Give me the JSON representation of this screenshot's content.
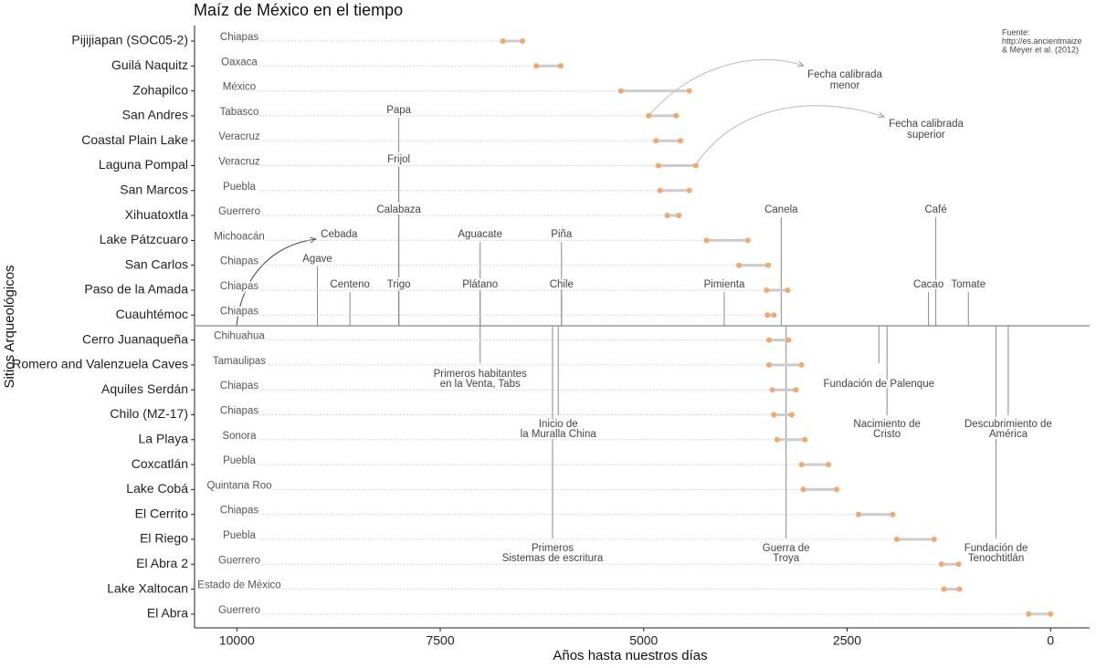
{
  "chart_data": {
    "type": "dumbbell",
    "title": "Maíz de México en el tiempo",
    "xlabel": "Años hasta nuestros días",
    "ylabel": "Sitios Arqueológicos",
    "xlim": [
      10520,
      -480
    ],
    "xticks": [
      10000,
      7500,
      5000,
      2500,
      0
    ],
    "categories": [
      "Pijijiapan (SOC05-2)",
      "Guilá Naquitz",
      "Zohapilco",
      "San Andres",
      "Coastal Plain Lake",
      "Laguna Pompal",
      "San Marcos",
      "Xihuatoxtla",
      "Lake Pátzcuaro",
      "San Carlos",
      "Paso de la Amada",
      "Cuauhtémoc",
      "Cerro Juanaqueña",
      "Romero and Valenzuela Caves",
      "Aquiles Serdán",
      "Chilo (MZ-17)",
      "La Playa",
      "Coxcatlán",
      "Lake Cobá",
      "El Cerrito",
      "El Riego",
      "El Abra 2",
      "Lake Xaltocan",
      "El Abra"
    ],
    "regions": [
      "Chiapas",
      "Oaxaca",
      "México",
      "Tabasco",
      "Veracruz",
      "Veracruz",
      "Puebla",
      "Guerrero",
      "Michoacán",
      "Chiapas",
      "Chiapas",
      "Chiapas",
      "Chihuahua",
      "Tamaulipas",
      "Chiapas",
      "Chiapas",
      "Sonora",
      "Puebla",
      "Quintana Roo",
      "Chiapas",
      "Puebla",
      "Guerrero",
      "Estado de México",
      "Guerrero"
    ],
    "series": [
      {
        "color": "#f4a76e",
        "values": [
          6730,
          6320,
          5280,
          4940,
          4850,
          4820,
          4800,
          4710,
          4230,
          3830,
          3490,
          3480,
          3460,
          3460,
          3420,
          3400,
          3360,
          3060,
          3040,
          2360,
          1890,
          1340,
          1310,
          270
        ]
      },
      {
        "color": "#f4a76e",
        "values": [
          6490,
          6020,
          4440,
          4600,
          4550,
          4360,
          4440,
          4570,
          3720,
          3470,
          3230,
          3400,
          3220,
          3060,
          3130,
          3180,
          3020,
          2730,
          2630,
          1940,
          1430,
          1130,
          1120,
          0
        ]
      }
    ],
    "range_color": "#cccccc",
    "events": [
      {
        "label": [
          "Cebada"
        ],
        "year": 10000
      },
      {
        "label": [
          "Agave"
        ],
        "year": 9010
      },
      {
        "label": [
          "Centeno"
        ],
        "year": 8610
      },
      {
        "label": [
          "Trigo"
        ],
        "year": 8010
      },
      {
        "label": [
          "Calabaza"
        ],
        "year": 8010
      },
      {
        "label": [
          "Frijol"
        ],
        "year": 8010
      },
      {
        "label": [
          "Papa"
        ],
        "year": 8010
      },
      {
        "label": [
          "Plátano"
        ],
        "year": 7010
      },
      {
        "label": [
          "Aguacate"
        ],
        "year": 7010
      },
      {
        "label": [
          "Chile"
        ],
        "year": 6010
      },
      {
        "label": [
          "Piña"
        ],
        "year": 6010
      },
      {
        "label": [
          "Pimienta"
        ],
        "year": 4010
      },
      {
        "label": [
          "Canela"
        ],
        "year": 3310
      },
      {
        "label": [
          "Cacao"
        ],
        "year": 1500
      },
      {
        "label": [
          "Café"
        ],
        "year": 1410
      },
      {
        "label": [
          "Tomate"
        ],
        "year": 1010
      },
      {
        "label": [
          "Primeros habitantes",
          "en la Venta, Tabs"
        ],
        "year": 7010
      },
      {
        "label": [
          "Inicio de",
          "la Muralla China"
        ],
        "year": 6050
      },
      {
        "label": [
          "Primeros",
          "Sistemas de escritura"
        ],
        "year": 6120
      },
      {
        "label": [
          "Guerra de",
          "Troya"
        ],
        "year": 3250
      },
      {
        "label": [
          "Fundación de Palenque"
        ],
        "year": 2110
      },
      {
        "label": [
          "Nacimiento de",
          "Cristo"
        ],
        "year": 2010
      },
      {
        "label": [
          "Descubrimiento de",
          "América"
        ],
        "year": 520
      },
      {
        "label": [
          "Fundación de",
          "Tenochtitlán"
        ],
        "year": 670
      }
    ],
    "annotations": [
      {
        "text": [
          "Fecha calibrada",
          " menor"
        ]
      },
      {
        "text": [
          "Fecha calibrada",
          " superior"
        ]
      }
    ],
    "source": [
      "Fuente:",
      " http://es.ancientmaize",
      " & Meyer et al. (2012)"
    ]
  }
}
